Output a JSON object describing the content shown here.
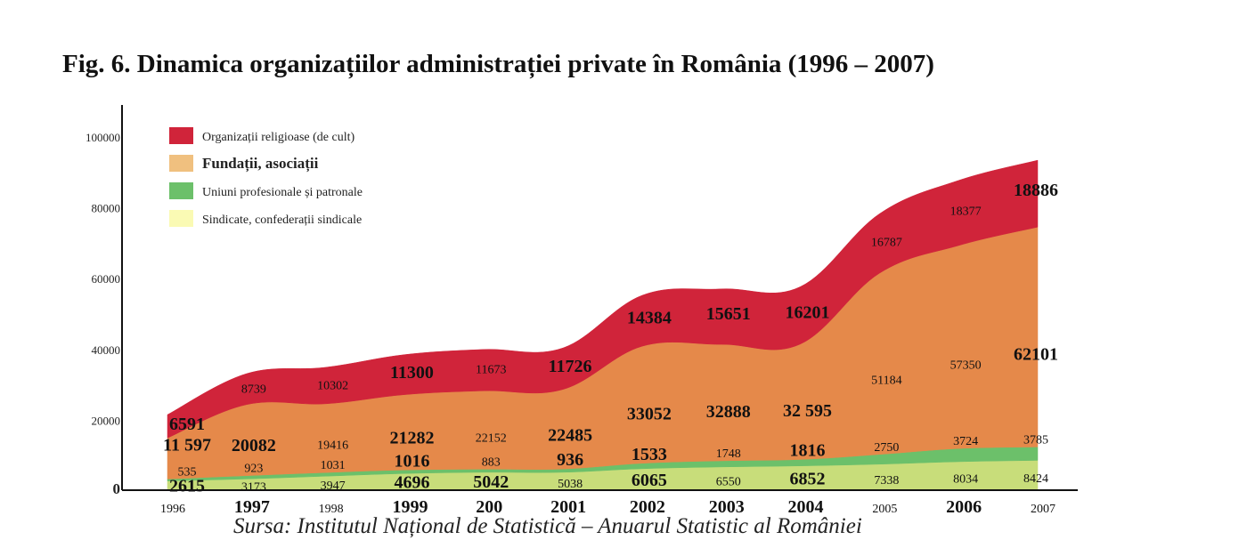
{
  "figure": {
    "title": "Fig. 6. Dinamica organizațiilor administrației private în România (1996 – 2007)",
    "source": "Sursa: Institutul Național de Statistică – Anuarul Statistic al României"
  },
  "chart_data": {
    "type": "area",
    "stacked": true,
    "title": "Fig. 6. Dinamica organizațiilor administrației private în România (1996 – 2007)",
    "xlabel": "",
    "ylabel": "",
    "categories": [
      "1996",
      "1997",
      "1998",
      "1999",
      "200",
      "2001",
      "2002",
      "2003",
      "2004",
      "2005",
      "2006",
      "2007"
    ],
    "yticks": [
      "0",
      "20000",
      "40000",
      "60000",
      "80000",
      "100000"
    ],
    "ylim": [
      0,
      110000
    ],
    "grid": false,
    "legend_position": "top-left",
    "series": [
      {
        "name": "Sindicate, confederații sindicale",
        "color": "#c8dd7a",
        "values": [
          2615,
          3173,
          3947,
          4696,
          5042,
          5038,
          6065,
          6550,
          6852,
          7338,
          8034,
          8424
        ],
        "labels": [
          "2615",
          "3173",
          "3947",
          "4696",
          "5042",
          "5038",
          "6065",
          "6550",
          "6852",
          "7338",
          "8034",
          "8424"
        ]
      },
      {
        "name": "Uniuni profesionale și patronale",
        "color": "#6cc06a",
        "values": [
          535,
          923,
          1031,
          1016,
          883,
          936,
          1533,
          1748,
          1816,
          2750,
          3724,
          3785
        ],
        "labels": [
          "535",
          "923",
          "1031",
          "1016",
          "883",
          "936",
          "1533",
          "1748",
          "1816",
          "2750",
          "3724",
          "3785"
        ]
      },
      {
        "name": "Fundații, asociații",
        "color": "#e5894a",
        "values": [
          11597,
          20082,
          19416,
          21282,
          22152,
          22485,
          33052,
          32888,
          32595,
          51184,
          57350,
          62101
        ],
        "labels": [
          "11 597",
          "20082",
          "19416",
          "21282",
          "22152",
          "22485",
          "33052",
          "32888",
          "32 595",
          "51184",
          "57350",
          "62101"
        ]
      },
      {
        "name": "Organizații religioase (de cult)",
        "color": "#d0243a",
        "values": [
          6591,
          8739,
          10302,
          11300,
          11673,
          11726,
          14384,
          15651,
          16201,
          16787,
          18377,
          18886
        ],
        "labels": [
          "6591",
          "8739",
          "10302",
          "11300",
          "11673",
          "11726",
          "14384",
          "15651",
          "16201",
          "16787",
          "18377",
          "18886"
        ]
      }
    ],
    "legend": [
      {
        "label": "Organizații religioase (de cult)",
        "color": "#d0243a"
      },
      {
        "label": "Fundații, asociații",
        "color": "#f0c07f"
      },
      {
        "label": "Uniuni profesionale și patronale",
        "color": "#6cc06a"
      },
      {
        "label": "Sindicate, confederații sindicale",
        "color": "#fafab4"
      }
    ]
  }
}
